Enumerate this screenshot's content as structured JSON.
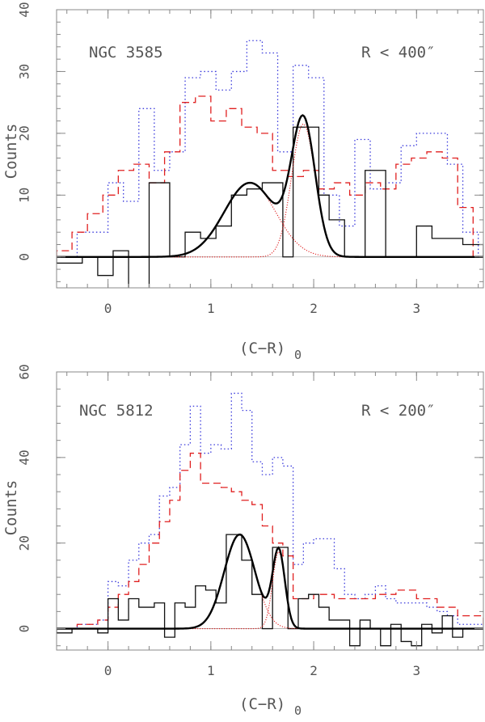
{
  "chart_data": [
    {
      "type": "histogram",
      "id": "top",
      "label": "NGC 3585",
      "radius_label": "R < 400″",
      "xlabel": "(C−R)",
      "xlabel_sub": "0",
      "ylabel": "Counts",
      "xlim": [
        -0.5,
        3.65
      ],
      "ylim": [
        -5,
        40
      ],
      "xticks": [
        0,
        1,
        2,
        3
      ],
      "yticks": [
        0,
        10,
        20,
        30,
        40
      ],
      "series": [
        {
          "name": "dotted-blue",
          "color": "#3a3adc",
          "style": "dotted",
          "edges": [
            -0.3,
            -0.15,
            0.0,
            0.15,
            0.3,
            0.45,
            0.6,
            0.75,
            0.9,
            1.05,
            1.2,
            1.35,
            1.5,
            1.65,
            1.8,
            1.95,
            2.1,
            2.25,
            2.4,
            2.55,
            2.7,
            2.85,
            3.0,
            3.15,
            3.3,
            3.45,
            3.6
          ],
          "values": [
            4,
            4,
            12,
            9,
            24,
            14,
            17,
            29,
            30,
            27,
            30,
            35,
            33,
            17,
            31,
            29,
            10,
            5,
            19,
            11,
            12,
            18,
            20,
            20,
            15,
            4
          ]
        },
        {
          "name": "dashed-red",
          "color": "#e02020",
          "style": "dashed",
          "edges": [
            -0.5,
            -0.35,
            -0.2,
            -0.05,
            0.1,
            0.25,
            0.4,
            0.55,
            0.7,
            0.85,
            1.0,
            1.15,
            1.3,
            1.45,
            1.6,
            1.75,
            1.9,
            2.05,
            2.2,
            2.35,
            2.5,
            2.65,
            2.8,
            2.95,
            3.1,
            3.25,
            3.4,
            3.55
          ],
          "values": [
            1,
            4,
            7,
            10,
            14,
            15,
            12,
            17,
            25,
            26,
            22,
            24,
            21,
            20,
            14,
            13,
            14,
            11,
            12,
            10,
            12,
            11,
            15,
            16,
            17,
            16,
            8
          ]
        },
        {
          "name": "solid-black",
          "color": "#111111",
          "style": "solid",
          "edges": [
            -0.5,
            -0.25,
            -0.1,
            0.05,
            0.2,
            0.4,
            0.6,
            0.75,
            0.9,
            1.05,
            1.2,
            1.35,
            1.5,
            1.7,
            1.8,
            1.95,
            2.05,
            2.15,
            2.3,
            2.5,
            2.7,
            2.85,
            3.0,
            3.15,
            3.3,
            3.45,
            3.65
          ],
          "values": [
            -1,
            0,
            -3,
            1,
            -6,
            12,
            0,
            4,
            3,
            5,
            10,
            11,
            12,
            0,
            21,
            21,
            10,
            6,
            0,
            14,
            0,
            0,
            5,
            3,
            3,
            2
          ]
        }
      ],
      "gaussians": [
        {
          "mu": 1.38,
          "sigma": 0.25,
          "amp": 12
        },
        {
          "mu": 1.9,
          "sigma": 0.115,
          "amp": 21.5
        }
      ]
    },
    {
      "type": "histogram",
      "id": "bottom",
      "label": "NGC 5812",
      "radius_label": "R < 200″",
      "xlabel": "(C−R)",
      "xlabel_sub": "0",
      "ylabel": "Counts",
      "xlim": [
        -0.5,
        3.65
      ],
      "ylim": [
        -5,
        60
      ],
      "xticks": [
        0,
        1,
        2,
        3
      ],
      "yticks": [
        0,
        20,
        40,
        60
      ],
      "series": [
        {
          "name": "dotted-blue",
          "color": "#3a3adc",
          "style": "dotted",
          "edges": [
            -0.5,
            -0.3,
            -0.1,
            0.0,
            0.1,
            0.2,
            0.3,
            0.4,
            0.5,
            0.6,
            0.7,
            0.8,
            0.9,
            1.0,
            1.1,
            1.2,
            1.3,
            1.4,
            1.5,
            1.6,
            1.7,
            1.8,
            1.9,
            2.0,
            2.1,
            2.2,
            2.3,
            2.4,
            2.5,
            2.6,
            2.7,
            2.8,
            2.9,
            3.0,
            3.1,
            3.2,
            3.3,
            3.4,
            3.65
          ],
          "values": [
            0,
            1,
            2,
            11,
            10,
            16,
            20,
            22,
            31,
            33,
            43,
            52,
            41,
            43,
            42,
            55,
            51,
            39,
            36,
            40,
            38,
            15,
            20,
            21,
            21,
            14,
            8,
            7,
            8,
            10,
            7,
            6,
            6,
            6,
            5,
            4,
            3,
            1
          ]
        },
        {
          "name": "dashed-red",
          "color": "#e02020",
          "style": "dashed",
          "edges": [
            -0.5,
            -0.3,
            -0.1,
            0.0,
            0.1,
            0.2,
            0.3,
            0.4,
            0.5,
            0.6,
            0.7,
            0.8,
            0.9,
            1.0,
            1.1,
            1.2,
            1.3,
            1.4,
            1.5,
            1.6,
            1.7,
            1.8,
            1.9,
            2.0,
            2.2,
            2.4,
            2.6,
            2.8,
            3.0,
            3.2,
            3.4,
            3.65
          ],
          "values": [
            0,
            1,
            2,
            5,
            8,
            11,
            15,
            20,
            25,
            30,
            37,
            41,
            34,
            34,
            33,
            32,
            30,
            29,
            24,
            20,
            17,
            7,
            7,
            8,
            7,
            7,
            8,
            9,
            7,
            5,
            3
          ]
        },
        {
          "name": "solid-black",
          "color": "#111111",
          "style": "solid",
          "edges": [
            -0.5,
            -0.35,
            -0.1,
            0.0,
            0.1,
            0.2,
            0.3,
            0.45,
            0.55,
            0.65,
            0.75,
            0.85,
            0.95,
            1.05,
            1.15,
            1.3,
            1.4,
            1.5,
            1.6,
            1.75,
            1.85,
            1.95,
            2.05,
            2.15,
            2.25,
            2.35,
            2.45,
            2.55,
            2.65,
            2.75,
            2.85,
            2.95,
            3.05,
            3.15,
            3.25,
            3.35,
            3.45,
            3.65
          ],
          "values": [
            -1,
            0,
            -1,
            7,
            2,
            7,
            5,
            6,
            -2,
            6,
            5,
            10,
            9,
            6,
            22,
            16,
            8,
            0,
            19,
            0,
            7,
            8,
            5,
            2,
            2,
            -4,
            2,
            0,
            -4,
            1,
            -3,
            -4,
            1,
            -1,
            3,
            -2,
            0
          ]
        }
      ],
      "gaussians": [
        {
          "mu": 1.28,
          "sigma": 0.15,
          "amp": 22
        },
        {
          "mu": 1.66,
          "sigma": 0.06,
          "amp": 18
        }
      ]
    }
  ]
}
